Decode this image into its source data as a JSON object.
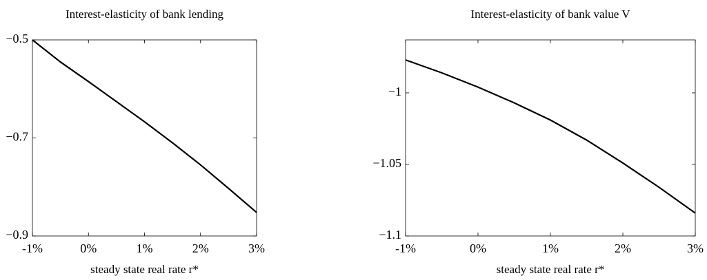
{
  "chart_data": [
    {
      "type": "line",
      "title": "Interest-elasticity of bank lending",
      "x_label": "steady state real rate r*",
      "x": [
        -1,
        -0.5,
        0,
        0.5,
        1,
        1.5,
        2,
        2.5,
        3
      ],
      "series": [
        {
          "color": "#000000",
          "values": [
            -0.5,
            -0.545,
            -0.585,
            -0.626,
            -0.667,
            -0.71,
            -0.755,
            -0.803,
            -0.852
          ]
        }
      ],
      "xlim": [
        -1,
        3
      ],
      "xticks": [
        {
          "value": -1,
          "label": "-1%"
        },
        {
          "value": 0,
          "label": "0%"
        },
        {
          "value": 1,
          "label": "1%"
        },
        {
          "value": 2,
          "label": "2%"
        },
        {
          "value": 3,
          "label": "3%"
        }
      ],
      "ylim": [
        -0.9,
        -0.5
      ],
      "yticks": [
        {
          "value": -0.9,
          "label": "−0.9"
        },
        {
          "value": -0.7,
          "label": "−0.7"
        },
        {
          "value": -0.5,
          "label": "−0.5"
        }
      ]
    },
    {
      "type": "line",
      "title": "Interest-elasticity of bank value V",
      "x_label": "steady state real rate r*",
      "x": [
        -1,
        -0.5,
        0,
        0.5,
        1,
        1.5,
        2,
        2.5,
        3
      ],
      "series": [
        {
          "color": "#000000",
          "values": [
            -0.977,
            -0.986,
            -0.996,
            -1.007,
            -1.019,
            -1.033,
            -1.049,
            -1.066,
            -1.084
          ]
        }
      ],
      "xlim": [
        -1,
        3
      ],
      "xticks": [
        {
          "value": -1,
          "label": "-1%"
        },
        {
          "value": 0,
          "label": "0%"
        },
        {
          "value": 1,
          "label": "1%"
        },
        {
          "value": 2,
          "label": "2%"
        },
        {
          "value": 3,
          "label": "3%"
        }
      ],
      "ylim": [
        -1.1,
        -0.963
      ],
      "yticks": [
        {
          "value": -1.1,
          "label": "−1.1"
        },
        {
          "value": -1.05,
          "label": "−1.05"
        },
        {
          "value": -1,
          "label": "−1"
        }
      ]
    }
  ]
}
